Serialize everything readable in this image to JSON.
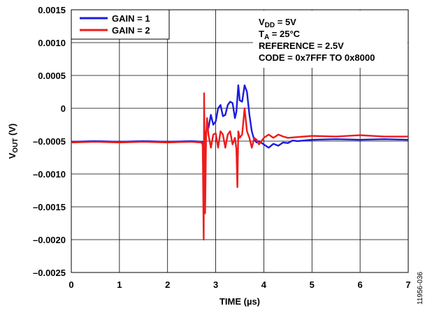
{
  "chart_data": {
    "type": "line",
    "xlabel": "TIME (µs)",
    "ylabel": {
      "main": "V",
      "sub": "OUT",
      "unit": " (V)"
    },
    "xlim": [
      0,
      7
    ],
    "ylim": [
      -0.0025,
      0.0015
    ],
    "x_ticks": [
      0,
      1,
      2,
      3,
      4,
      5,
      6,
      7
    ],
    "x_tick_labels": [
      "0",
      "1",
      "2",
      "3",
      "4",
      "5",
      "6",
      "7"
    ],
    "y_ticks": [
      0.0015,
      0.001,
      0.0005,
      0,
      -0.0005,
      -0.001,
      -0.0015,
      -0.002,
      -0.0025
    ],
    "y_tick_labels": [
      "0.0015",
      "0.0010",
      "0.0005",
      "0",
      "–0.0005",
      "–0.0010",
      "–0.0015",
      "–0.0020",
      "–0.0025"
    ],
    "grid": true,
    "legend_position": "top-left",
    "series": [
      {
        "name": "GAIN = 1",
        "color": "#1c1cde",
        "points": [
          [
            0,
            -0.00051
          ],
          [
            0.5,
            -0.0005
          ],
          [
            1,
            -0.00051
          ],
          [
            1.5,
            -0.0005
          ],
          [
            2,
            -0.00051
          ],
          [
            2.5,
            -0.0005
          ],
          [
            2.72,
            -0.00051
          ],
          [
            2.74,
            -0.00062
          ],
          [
            2.76,
            -0.00145
          ],
          [
            2.78,
            -0.00052
          ],
          [
            2.8,
            -0.00035
          ],
          [
            2.85,
            -0.0003
          ],
          [
            2.9,
            -0.0001
          ],
          [
            2.95,
            -0.00025
          ],
          [
            3,
            -0.0002
          ],
          [
            3.05,
            0
          ],
          [
            3.1,
            5e-05
          ],
          [
            3.15,
            -0.00012
          ],
          [
            3.2,
            -0.0001
          ],
          [
            3.25,
            5e-05
          ],
          [
            3.3,
            0.0001
          ],
          [
            3.35,
            8e-05
          ],
          [
            3.4,
            -0.00015
          ],
          [
            3.43,
            -5e-05
          ],
          [
            3.47,
            0.00035
          ],
          [
            3.5,
            0.00012
          ],
          [
            3.55,
            0.0001
          ],
          [
            3.6,
            0.00035
          ],
          [
            3.65,
            0.00025
          ],
          [
            3.7,
            -0.0001
          ],
          [
            3.75,
            -0.00035
          ],
          [
            3.8,
            -0.00048
          ],
          [
            3.85,
            -0.00052
          ],
          [
            3.9,
            -0.0005
          ],
          [
            4,
            -0.00055
          ],
          [
            4.1,
            -0.0006
          ],
          [
            4.2,
            -0.00054
          ],
          [
            4.3,
            -0.00057
          ],
          [
            4.4,
            -0.00052
          ],
          [
            4.5,
            -0.00053
          ],
          [
            4.6,
            -0.00049
          ],
          [
            4.7,
            -0.0005
          ],
          [
            5,
            -0.00048
          ],
          [
            5.5,
            -0.00047
          ],
          [
            6,
            -0.00048
          ],
          [
            6.5,
            -0.00047
          ],
          [
            7,
            -0.00048
          ]
        ]
      },
      {
        "name": "GAIN = 2",
        "color": "#ee1c1c",
        "points": [
          [
            0,
            -0.00052
          ],
          [
            0.5,
            -0.00051
          ],
          [
            1,
            -0.00052
          ],
          [
            1.5,
            -0.00051
          ],
          [
            2,
            -0.00052
          ],
          [
            2.5,
            -0.00051
          ],
          [
            2.7,
            -0.00052
          ],
          [
            2.73,
            -0.00055
          ],
          [
            2.75,
            -0.002
          ],
          [
            2.76,
            0.00023
          ],
          [
            2.78,
            -0.0016
          ],
          [
            2.8,
            -0.00045
          ],
          [
            2.82,
            -0.00015
          ],
          [
            2.85,
            -0.0004
          ],
          [
            2.9,
            -0.0006
          ],
          [
            2.95,
            -0.0004
          ],
          [
            3,
            -0.00038
          ],
          [
            3.05,
            -0.0006
          ],
          [
            3.1,
            -0.00035
          ],
          [
            3.15,
            -0.0004
          ],
          [
            3.2,
            -0.0006
          ],
          [
            3.25,
            -0.0004
          ],
          [
            3.3,
            -0.00035
          ],
          [
            3.35,
            -0.00055
          ],
          [
            3.4,
            -0.00045
          ],
          [
            3.43,
            -0.00062
          ],
          [
            3.45,
            -0.0012
          ],
          [
            3.47,
            -0.00035
          ],
          [
            3.5,
            -0.00045
          ],
          [
            3.55,
            -0.0004
          ],
          [
            3.6,
            0
          ],
          [
            3.65,
            -0.00035
          ],
          [
            3.7,
            -0.00045
          ],
          [
            3.75,
            -0.0006
          ],
          [
            3.8,
            -0.00045
          ],
          [
            3.85,
            -0.00048
          ],
          [
            3.9,
            -0.00055
          ],
          [
            4,
            -0.00045
          ],
          [
            4.1,
            -0.0004
          ],
          [
            4.2,
            -0.00045
          ],
          [
            4.3,
            -0.0004
          ],
          [
            4.4,
            -0.00043
          ],
          [
            4.5,
            -0.00045
          ],
          [
            5,
            -0.00042
          ],
          [
            5.5,
            -0.00043
          ],
          [
            6,
            -0.00041
          ],
          [
            6.5,
            -0.00043
          ],
          [
            7,
            -0.00043
          ]
        ]
      }
    ],
    "annotations": [
      {
        "main": "V",
        "sub": "DD",
        "rest": " = 5V"
      },
      {
        "main": "T",
        "sub": "A",
        "rest": " = 25°C"
      },
      {
        "main": "REFERENCE = 2.5V",
        "sub": "",
        "rest": ""
      },
      {
        "main": "CODE = 0x7FFF TO 0x8000",
        "sub": "",
        "rest": ""
      }
    ],
    "figure_id": "11956-036"
  }
}
